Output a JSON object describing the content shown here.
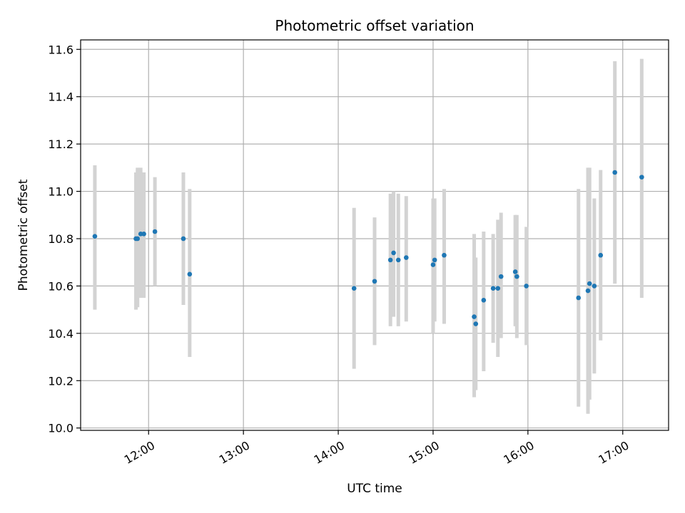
{
  "chart_data": {
    "type": "scatter",
    "title": "Photometric offset variation",
    "xlabel": "UTC time",
    "ylabel": "Photometric offset",
    "x_axis": "time (HH:MM, UTC)",
    "xlim": [
      "11:17",
      "17:29"
    ],
    "ylim": [
      9.99,
      11.64
    ],
    "xticks": [
      "12:00",
      "13:00",
      "14:00",
      "15:00",
      "16:00",
      "17:00"
    ],
    "yticks": [
      "10.0",
      "10.2",
      "10.4",
      "10.6",
      "10.8",
      "11.0",
      "11.2",
      "11.4",
      "11.6"
    ],
    "grid": true,
    "legend": "none",
    "colors": {
      "points": "#1f77b4",
      "errorbars": "#d3d3d3",
      "grid": "#b0b0b0"
    },
    "points": [
      {
        "x": "11:26",
        "y": 10.81,
        "ylow": 10.5,
        "yhigh": 11.11
      },
      {
        "x": "11:52",
        "y": 10.8,
        "ylow": 10.5,
        "yhigh": 11.08
      },
      {
        "x": "11:53",
        "y": 10.8,
        "ylow": 10.51,
        "yhigh": 11.1
      },
      {
        "x": "11:55",
        "y": 10.82,
        "ylow": 10.55,
        "yhigh": 11.1
      },
      {
        "x": "11:57",
        "y": 10.82,
        "ylow": 10.55,
        "yhigh": 11.08
      },
      {
        "x": "12:04",
        "y": 10.83,
        "ylow": 10.6,
        "yhigh": 11.06
      },
      {
        "x": "12:22",
        "y": 10.8,
        "ylow": 10.52,
        "yhigh": 11.08
      },
      {
        "x": "12:26",
        "y": 10.65,
        "ylow": 10.3,
        "yhigh": 11.01
      },
      {
        "x": "14:10",
        "y": 10.59,
        "ylow": 10.25,
        "yhigh": 10.93
      },
      {
        "x": "14:23",
        "y": 10.62,
        "ylow": 10.35,
        "yhigh": 10.89
      },
      {
        "x": "14:33",
        "y": 10.71,
        "ylow": 10.43,
        "yhigh": 10.99
      },
      {
        "x": "14:35",
        "y": 10.74,
        "ylow": 10.47,
        "yhigh": 11.0
      },
      {
        "x": "14:38",
        "y": 10.71,
        "ylow": 10.43,
        "yhigh": 10.99
      },
      {
        "x": "14:43",
        "y": 10.72,
        "ylow": 10.45,
        "yhigh": 10.98
      },
      {
        "x": "15:00",
        "y": 10.69,
        "ylow": 10.4,
        "yhigh": 10.97
      },
      {
        "x": "15:01",
        "y": 10.71,
        "ylow": 10.45,
        "yhigh": 10.97
      },
      {
        "x": "15:07",
        "y": 10.73,
        "ylow": 10.44,
        "yhigh": 11.01
      },
      {
        "x": "15:26",
        "y": 10.47,
        "ylow": 10.13,
        "yhigh": 10.82
      },
      {
        "x": "15:27",
        "y": 10.44,
        "ylow": 10.16,
        "yhigh": 10.72
      },
      {
        "x": "15:32",
        "y": 10.54,
        "ylow": 10.24,
        "yhigh": 10.83
      },
      {
        "x": "15:38",
        "y": 10.59,
        "ylow": 10.36,
        "yhigh": 10.82
      },
      {
        "x": "15:41",
        "y": 10.59,
        "ylow": 10.3,
        "yhigh": 10.88
      },
      {
        "x": "15:43",
        "y": 10.64,
        "ylow": 10.38,
        "yhigh": 10.91
      },
      {
        "x": "15:52",
        "y": 10.66,
        "ylow": 10.43,
        "yhigh": 10.9
      },
      {
        "x": "15:53",
        "y": 10.64,
        "ylow": 10.38,
        "yhigh": 10.9
      },
      {
        "x": "15:59",
        "y": 10.6,
        "ylow": 10.35,
        "yhigh": 10.85
      },
      {
        "x": "16:32",
        "y": 10.55,
        "ylow": 10.09,
        "yhigh": 11.01
      },
      {
        "x": "16:38",
        "y": 10.58,
        "ylow": 10.06,
        "yhigh": 11.1
      },
      {
        "x": "16:39",
        "y": 10.61,
        "ylow": 10.12,
        "yhigh": 11.1
      },
      {
        "x": "16:42",
        "y": 10.6,
        "ylow": 10.23,
        "yhigh": 10.97
      },
      {
        "x": "16:46",
        "y": 10.73,
        "ylow": 10.37,
        "yhigh": 11.09
      },
      {
        "x": "16:55",
        "y": 11.08,
        "ylow": 10.61,
        "yhigh": 11.55
      },
      {
        "x": "17:12",
        "y": 11.06,
        "ylow": 10.55,
        "yhigh": 11.56
      }
    ]
  }
}
